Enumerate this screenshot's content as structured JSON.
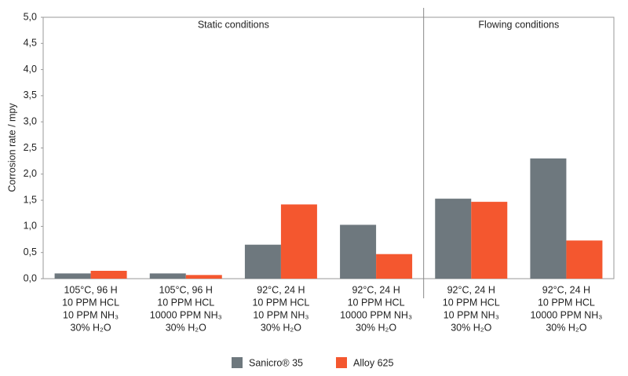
{
  "chart_data": {
    "type": "bar",
    "y_label": "Corrosion rate / mpy",
    "sections": [
      "Static conditions",
      "Flowing conditions"
    ],
    "categories": [
      [
        "105°C, 96 H",
        "10 PPM HCL",
        "10 PPM NH₃",
        "30% H₂O"
      ],
      [
        "105°C, 96 H",
        "10 PPM HCL",
        "10000 PPM NH₃",
        "30% H₂O"
      ],
      [
        "92°C, 24 H",
        "10 PPM HCL",
        "10 PPM NH₃",
        "30% H₂O"
      ],
      [
        "92°C, 24 H",
        "10 PPM HCL",
        "10000 PPM NH₃",
        "30% H₂O"
      ],
      [
        "92°C, 24 H",
        "10 PPM HCL",
        "10 PPM NH₃",
        "30% H₂O"
      ],
      [
        "92°C, 24 H",
        "10 PPM HCL",
        "10000 PPM NH₃",
        "30% H₂O"
      ]
    ],
    "series": [
      {
        "name": "Sanicro® 35",
        "color": "#6e787e",
        "values": [
          0.1,
          0.1,
          0.65,
          1.03,
          1.53,
          2.3
        ]
      },
      {
        "name": "Alloy 625",
        "color": "#f4572f",
        "values": [
          0.15,
          0.07,
          1.42,
          0.47,
          1.47,
          0.73
        ]
      }
    ],
    "ylim": [
      0,
      5
    ],
    "yticks": [
      {
        "value": 0,
        "label": "0,0"
      },
      {
        "value": 0.5,
        "label": "0,5"
      },
      {
        "value": 1,
        "label": "1,0"
      },
      {
        "value": 1.5,
        "label": "1,5"
      },
      {
        "value": 2,
        "label": "2,0"
      },
      {
        "value": 2.5,
        "label": "2,5"
      },
      {
        "value": 3,
        "label": "3,0"
      },
      {
        "value": 3.5,
        "label": "3,5"
      },
      {
        "value": 4,
        "label": "4,0"
      },
      {
        "value": 4.5,
        "label": "4,5"
      },
      {
        "value": 5,
        "label": "5,0"
      }
    ],
    "legend": "bottom"
  }
}
